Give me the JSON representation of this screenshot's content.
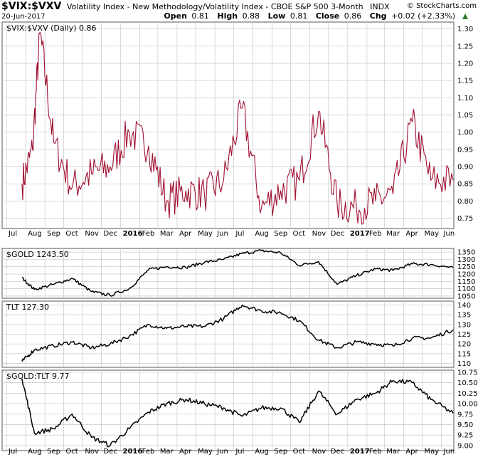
{
  "header": {
    "symbol": "$VIX:$VXV",
    "description": "Volatility Index - New Methodology/Volatility Index - CBOE S&P 500 3-Month",
    "exchange": "INDX",
    "date": "20-Jun-2017",
    "brand": "© StockCharts.com",
    "quote": {
      "open_label": "Open",
      "open": "0.81",
      "high_label": "High",
      "high": "0.88",
      "low_label": "Low",
      "low": "0.81",
      "close_label": "Close",
      "close": "0.86",
      "chg_label": "Chg",
      "chg": "+0.02 (+2.33%)"
    }
  },
  "colors": {
    "vix_line": "#a01030",
    "price_line": "#000000",
    "grid": "#c8c8c8",
    "border": "#555555",
    "up_arrow": "#2a7a2a"
  },
  "x_axis": {
    "labels": [
      "Jul",
      "Aug",
      "Sep",
      "Oct",
      "Nov",
      "Dec",
      "2016",
      "Feb",
      "Mar",
      "Apr",
      "May",
      "Jun",
      "Jul",
      "Aug",
      "Sep",
      "Oct",
      "Nov",
      "Dec",
      "2017",
      "Feb",
      "Mar",
      "Apr",
      "May",
      "Jun"
    ]
  },
  "chart_data": [
    {
      "type": "line",
      "label": "$VIX:$VXV (Daily) 0.86",
      "series": [
        {
          "name": "$VIX:$VXV",
          "x": [
            "2015-07",
            "2015-08",
            "2015-08",
            "2015-09",
            "2015-10",
            "2015-11",
            "2015-12",
            "2016-01",
            "2016-02",
            "2016-03",
            "2016-04",
            "2016-05",
            "2016-06",
            "2016-07",
            "2016-08",
            "2016-09",
            "2016-10",
            "2016-11",
            "2016-12",
            "2017-01",
            "2017-02",
            "2017-03",
            "2017-04",
            "2017-05",
            "2017-06"
          ],
          "y": [
            0.85,
            0.95,
            1.29,
            0.97,
            0.84,
            0.88,
            0.9,
            1.0,
            0.96,
            0.8,
            0.83,
            0.82,
            0.86,
            1.07,
            0.78,
            0.83,
            0.86,
            1.06,
            0.79,
            0.78,
            0.8,
            0.82,
            1.03,
            0.86,
            0.86
          ]
        }
      ],
      "ylim": [
        0.72,
        1.32
      ],
      "yticks": [
        0.75,
        0.8,
        0.85,
        0.9,
        0.95,
        1.0,
        1.05,
        1.1,
        1.15,
        1.2,
        1.25,
        1.3
      ]
    },
    {
      "type": "line",
      "label": "$GOLD 1243.50",
      "series": [
        {
          "name": "$GOLD",
          "x": [
            "2015-07",
            "2015-08",
            "2015-09",
            "2015-10",
            "2015-11",
            "2015-12",
            "2016-01",
            "2016-02",
            "2016-03",
            "2016-04",
            "2016-05",
            "2016-06",
            "2016-07",
            "2016-08",
            "2016-09",
            "2016-10",
            "2016-11",
            "2016-12",
            "2017-01",
            "2017-02",
            "2017-03",
            "2017-04",
            "2017-05",
            "2017-06"
          ],
          "y": [
            1175,
            1095,
            1130,
            1170,
            1080,
            1055,
            1100,
            1230,
            1250,
            1245,
            1280,
            1300,
            1340,
            1360,
            1345,
            1260,
            1285,
            1130,
            1190,
            1235,
            1225,
            1270,
            1265,
            1243.5
          ]
        }
      ],
      "ylim": [
        1035,
        1375
      ],
      "yticks": [
        1050,
        1100,
        1150,
        1200,
        1250,
        1300,
        1350
      ]
    },
    {
      "type": "line",
      "label": "TLT 127.30",
      "series": [
        {
          "name": "TLT",
          "x": [
            "2015-07",
            "2015-08",
            "2015-09",
            "2015-10",
            "2015-11",
            "2015-12",
            "2016-01",
            "2016-02",
            "2016-03",
            "2016-04",
            "2016-05",
            "2016-06",
            "2016-07",
            "2016-08",
            "2016-09",
            "2016-10",
            "2016-11",
            "2016-12",
            "2017-01",
            "2017-02",
            "2017-03",
            "2017-04",
            "2017-05",
            "2017-06"
          ],
          "y": [
            111,
            117,
            119,
            121,
            118,
            120,
            124,
            130,
            128,
            129,
            129,
            133,
            140,
            137,
            136,
            132,
            122,
            118,
            121,
            120,
            119,
            123,
            123,
            127.3
          ]
        }
      ],
      "ylim": [
        108,
        142
      ],
      "yticks": [
        110,
        115,
        120,
        125,
        130,
        135,
        140
      ]
    },
    {
      "type": "line",
      "label": "$GOLD:TLT 9.77",
      "series": [
        {
          "name": "$GOLD:TLT",
          "x": [
            "2015-07",
            "2015-08",
            "2015-09",
            "2015-10",
            "2015-11",
            "2015-12",
            "2016-01",
            "2016-02",
            "2016-03",
            "2016-04",
            "2016-05",
            "2016-06",
            "2016-07",
            "2016-08",
            "2016-09",
            "2016-10",
            "2016-11",
            "2016-12",
            "2017-01",
            "2017-02",
            "2017-03",
            "2017-04",
            "2017-05",
            "2017-06"
          ],
          "y": [
            10.6,
            9.3,
            9.4,
            9.75,
            9.2,
            9.0,
            9.4,
            9.8,
            10.0,
            10.1,
            10.0,
            9.9,
            9.7,
            9.9,
            9.9,
            9.55,
            10.3,
            9.75,
            10.1,
            10.25,
            10.55,
            10.5,
            10.1,
            9.77
          ]
        }
      ],
      "ylim": [
        8.88,
        10.8
      ],
      "yticks": [
        9.0,
        9.25,
        9.5,
        9.75,
        10.0,
        10.25,
        10.5,
        10.75
      ]
    }
  ]
}
